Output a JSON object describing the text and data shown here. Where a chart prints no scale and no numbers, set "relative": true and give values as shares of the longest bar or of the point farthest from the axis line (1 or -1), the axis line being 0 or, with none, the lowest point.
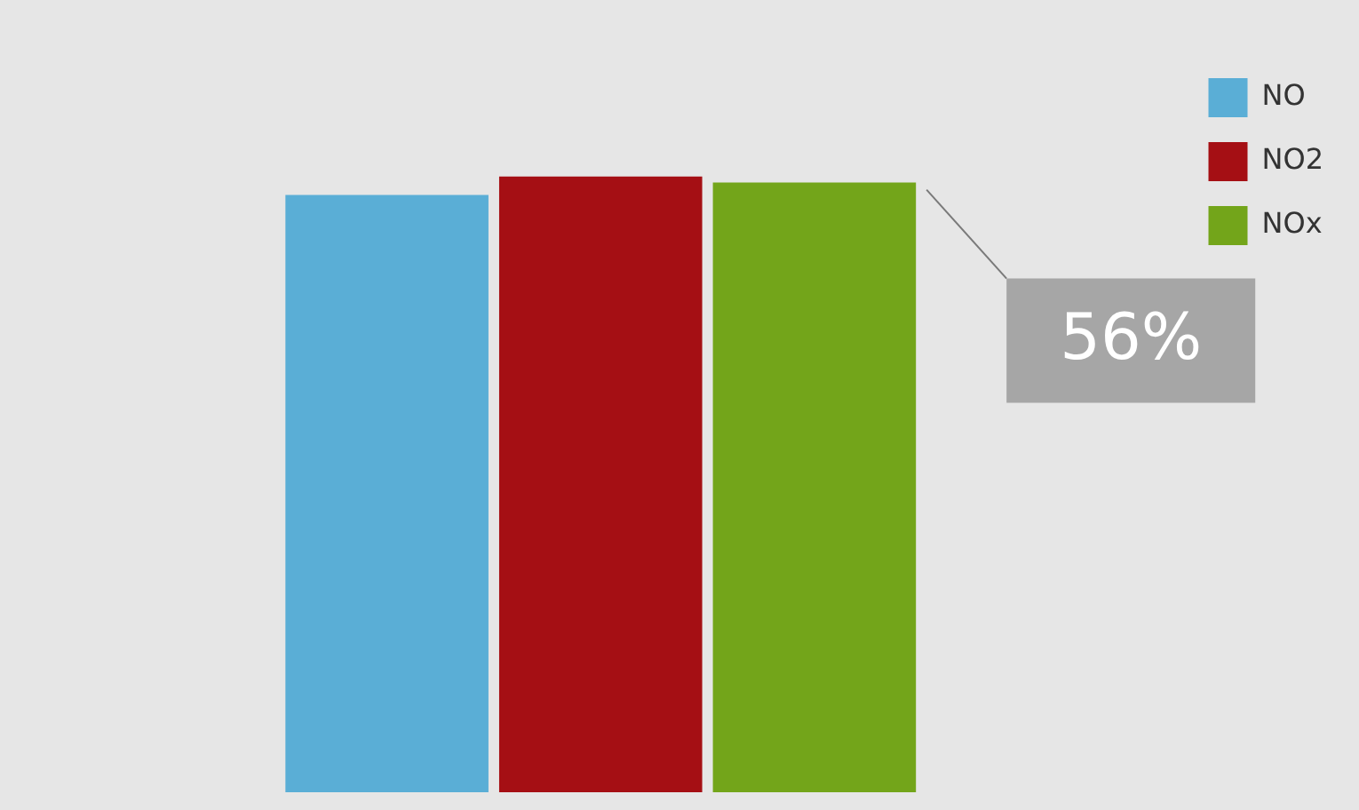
{
  "chart_data": {
    "type": "bar",
    "relative": true,
    "categories": [
      null
    ],
    "series": [
      {
        "name": "NO",
        "color": "#5aaed6",
        "values": [
          0.97
        ]
      },
      {
        "name": "NO2",
        "color": "#a50f14",
        "values": [
          1
        ]
      },
      {
        "name": "NOx",
        "color": "#73a51a",
        "values": [
          0.99
        ]
      }
    ],
    "annotations": [
      "56%"
    ],
    "legend": "top right",
    "grid": false
  }
}
